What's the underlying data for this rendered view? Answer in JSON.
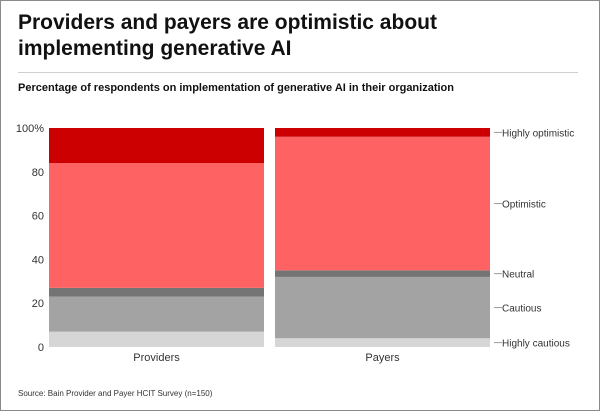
{
  "title": "Providers and payers are optimistic about implementing generative AI",
  "subtitle": "Percentage of respondents on implementation of generative AI in their organization",
  "source": "Source: Bain Provider and Payer HCIT Survey (n=150)",
  "chart_data": {
    "type": "bar",
    "stacked": true,
    "categories": [
      "Providers",
      "Payers"
    ],
    "series": [
      {
        "name": "Highly cautious",
        "color": "#d6d6d6",
        "values": [
          7,
          4
        ]
      },
      {
        "name": "Cautious",
        "color": "#a3a3a3",
        "values": [
          16,
          28
        ]
      },
      {
        "name": "Neutral",
        "color": "#747474",
        "values": [
          4,
          3
        ]
      },
      {
        "name": "Optimistic",
        "color": "#ff6262",
        "values": [
          57,
          61
        ]
      },
      {
        "name": "Highly optimistic",
        "color": "#cc0000",
        "values": [
          16,
          4
        ]
      }
    ],
    "yticks": [
      "0",
      "20",
      "40",
      "60",
      "80",
      "100%"
    ],
    "ylim": [
      0,
      100
    ],
    "legend": "right, labels aligned to Payers bar segments",
    "grid": false
  }
}
